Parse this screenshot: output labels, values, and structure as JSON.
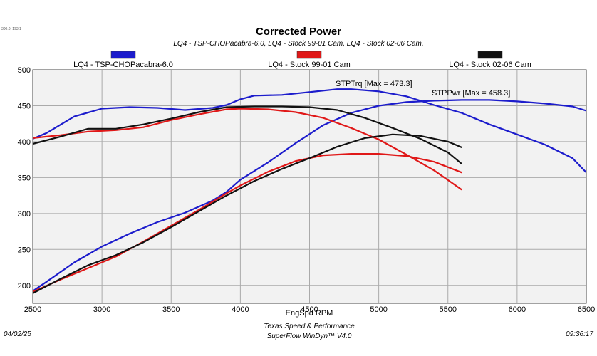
{
  "header": {
    "corner_text": "300.0, 193.1",
    "title": "Corrected Power",
    "subtitle": "LQ4 - TSP-CHOPacabra-6.0, LQ4 - Stock 99-01 Cam, LQ4 - Stock 02-06 Cam,"
  },
  "footer": {
    "date": "04/02/25",
    "time": "09:36:17",
    "company": "Texas Speed & Performance",
    "software": "SuperFlow WinDyn™ V4.0"
  },
  "annotations": {
    "torque": "STPTrq [Max = 473.3]",
    "power": "STPPwr [Max = 458.3]"
  },
  "colors": {
    "tsp": "#1c1ccc",
    "stock99": "#e01818",
    "stock02": "#111111",
    "annotation": "#1c1ccc",
    "grid": "#aaaaaa",
    "plot_bg": "#f2f2f2"
  },
  "chart_data": {
    "type": "line",
    "title": "Corrected Power",
    "xlabel": "EngSpd RPM",
    "ylabel": "",
    "xlim": [
      2500,
      6500
    ],
    "ylim": [
      175,
      500
    ],
    "x_ticks": [
      2500,
      3000,
      3500,
      4000,
      4500,
      5000,
      5500,
      6000,
      6500
    ],
    "y_ticks": [
      200,
      250,
      300,
      350,
      400,
      450,
      500
    ],
    "grid": true,
    "legend_placement": "top",
    "series": [
      {
        "name": "LQ4 - TSP-CHOPacabra-6.0",
        "color_key": "tsp",
        "torque": [
          [
            2500,
            404
          ],
          [
            2600,
            412
          ],
          [
            2800,
            435
          ],
          [
            3000,
            446
          ],
          [
            3200,
            448
          ],
          [
            3400,
            447
          ],
          [
            3600,
            444
          ],
          [
            3800,
            447
          ],
          [
            3900,
            451
          ],
          [
            4000,
            459
          ],
          [
            4100,
            464
          ],
          [
            4300,
            465
          ],
          [
            4500,
            469
          ],
          [
            4700,
            473
          ],
          [
            4800,
            473
          ],
          [
            5000,
            470
          ],
          [
            5200,
            463
          ],
          [
            5400,
            451
          ],
          [
            5600,
            440
          ],
          [
            5800,
            424
          ],
          [
            6000,
            410
          ],
          [
            6200,
            396
          ],
          [
            6400,
            377
          ],
          [
            6500,
            357
          ]
        ],
        "power": [
          [
            2500,
            192
          ],
          [
            2600,
            205
          ],
          [
            2800,
            232
          ],
          [
            3000,
            254
          ],
          [
            3200,
            272
          ],
          [
            3400,
            288
          ],
          [
            3600,
            301
          ],
          [
            3800,
            318
          ],
          [
            3900,
            330
          ],
          [
            4000,
            347
          ],
          [
            4200,
            371
          ],
          [
            4400,
            398
          ],
          [
            4600,
            423
          ],
          [
            4800,
            440
          ],
          [
            5000,
            450
          ],
          [
            5200,
            455
          ],
          [
            5400,
            457
          ],
          [
            5600,
            458
          ],
          [
            5800,
            458
          ],
          [
            6000,
            456
          ],
          [
            6200,
            453
          ],
          [
            6400,
            449
          ],
          [
            6500,
            443
          ]
        ]
      },
      {
        "name": "LQ4 - Stock 99-01 Cam",
        "color_key": "stock99",
        "torque": [
          [
            2500,
            405
          ],
          [
            2700,
            409
          ],
          [
            2900,
            414
          ],
          [
            3100,
            416
          ],
          [
            3300,
            420
          ],
          [
            3500,
            430
          ],
          [
            3700,
            438
          ],
          [
            3900,
            445
          ],
          [
            4000,
            446
          ],
          [
            4200,
            445
          ],
          [
            4400,
            441
          ],
          [
            4600,
            433
          ],
          [
            4800,
            419
          ],
          [
            5000,
            403
          ],
          [
            5200,
            382
          ],
          [
            5400,
            360
          ],
          [
            5600,
            333
          ]
        ],
        "power": [
          [
            2500,
            191
          ],
          [
            2700,
            208
          ],
          [
            2900,
            224
          ],
          [
            3100,
            240
          ],
          [
            3300,
            261
          ],
          [
            3500,
            283
          ],
          [
            3700,
            305
          ],
          [
            3900,
            328
          ],
          [
            4000,
            339
          ],
          [
            4200,
            358
          ],
          [
            4400,
            373
          ],
          [
            4600,
            381
          ],
          [
            4800,
            383
          ],
          [
            5000,
            383
          ],
          [
            5200,
            380
          ],
          [
            5400,
            372
          ],
          [
            5600,
            357
          ]
        ]
      },
      {
        "name": "LQ4 - Stock 02-06 Cam",
        "color_key": "stock02",
        "torque": [
          [
            2500,
            397
          ],
          [
            2700,
            407
          ],
          [
            2900,
            418
          ],
          [
            3100,
            418
          ],
          [
            3300,
            424
          ],
          [
            3500,
            432
          ],
          [
            3700,
            441
          ],
          [
            3900,
            448
          ],
          [
            4100,
            449
          ],
          [
            4300,
            449
          ],
          [
            4500,
            448
          ],
          [
            4700,
            444
          ],
          [
            4900,
            433
          ],
          [
            5100,
            419
          ],
          [
            5300,
            404
          ],
          [
            5500,
            385
          ],
          [
            5600,
            369
          ]
        ],
        "power": [
          [
            2500,
            189
          ],
          [
            2700,
            209
          ],
          [
            2900,
            228
          ],
          [
            3100,
            242
          ],
          [
            3300,
            260
          ],
          [
            3500,
            281
          ],
          [
            3700,
            303
          ],
          [
            3900,
            325
          ],
          [
            4100,
            345
          ],
          [
            4300,
            362
          ],
          [
            4500,
            377
          ],
          [
            4700,
            393
          ],
          [
            4900,
            405
          ],
          [
            5100,
            410
          ],
          [
            5300,
            408
          ],
          [
            5500,
            400
          ],
          [
            5600,
            392
          ]
        ]
      }
    ]
  }
}
